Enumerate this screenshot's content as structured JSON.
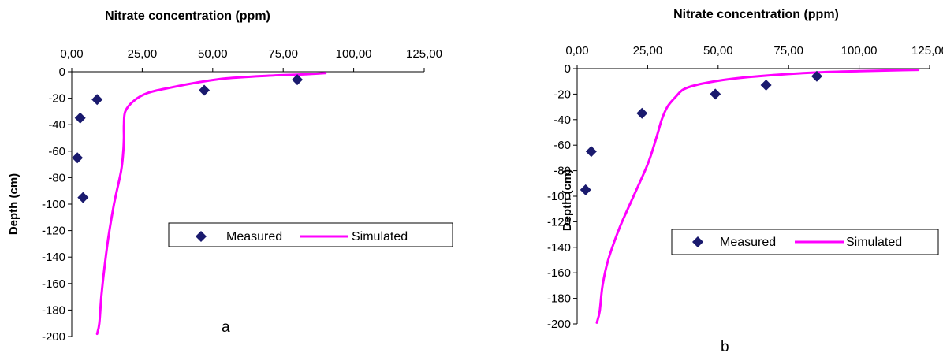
{
  "colors": {
    "measured": "#1a1a6e",
    "simulated": "#ff00ff"
  },
  "chart_data": [
    {
      "type": "scatter",
      "title": "Nitrate concentration (ppm)",
      "xlabel": "Nitrate concentration (ppm)",
      "ylabel": "Depth (cm)",
      "panel_label": "a",
      "xlim": [
        0,
        125
      ],
      "ylim": [
        -200,
        0
      ],
      "x_axis_position": "top",
      "x_ticks": [
        0,
        25,
        50,
        75,
        100,
        125
      ],
      "x_tick_labels": [
        "0,00",
        "25,00",
        "50,00",
        "75,00",
        "100,00",
        "125,00"
      ],
      "y_ticks": [
        0,
        -20,
        -40,
        -60,
        -80,
        -100,
        -120,
        -140,
        -160,
        -180,
        -200
      ],
      "y_tick_labels": [
        "0",
        "-20",
        "-40",
        "-60",
        "-80",
        "-100",
        "-120",
        "-140",
        "-160",
        "-180",
        "-200"
      ],
      "grid": false,
      "legend": {
        "position": "center-right",
        "entries": [
          "Measured",
          "Simulated"
        ]
      },
      "series": [
        {
          "name": "Measured",
          "kind": "scatter",
          "x": [
            80,
            47,
            9,
            3,
            2,
            4
          ],
          "y": [
            -6,
            -14,
            -21,
            -35,
            -65,
            -95
          ]
        },
        {
          "name": "Simulated",
          "kind": "line",
          "x": [
            90,
            82,
            70,
            55,
            45,
            35,
            27,
            22,
            19,
            18.5,
            18.5,
            18.3,
            17.5,
            15,
            13,
            11.5,
            10.5,
            9.8,
            9
          ],
          "y": [
            -1,
            -2,
            -3,
            -5,
            -8,
            -12,
            -16,
            -22,
            -30,
            -40,
            -50,
            -60,
            -75,
            -100,
            -125,
            -150,
            -170,
            -190,
            -198
          ]
        }
      ]
    },
    {
      "type": "scatter",
      "title": "Nitrate concentration (ppm)",
      "xlabel": "Nitrate concentration (ppm)",
      "ylabel": "Depth (cm)",
      "panel_label": "b",
      "xlim": [
        0,
        125
      ],
      "ylim": [
        -200,
        0
      ],
      "x_axis_position": "top",
      "x_ticks": [
        0,
        25,
        50,
        75,
        100,
        125
      ],
      "x_tick_labels": [
        "0,00",
        "25,00",
        "50,00",
        "75,00",
        "100,00",
        "125,00"
      ],
      "y_ticks": [
        0,
        -20,
        -40,
        -60,
        -80,
        -100,
        -120,
        -140,
        -160,
        -180,
        -200
      ],
      "y_tick_labels": [
        "0",
        "-20",
        "-40",
        "-60",
        "-80",
        "-100",
        "-120",
        "-140",
        "-160",
        "-180",
        "-200"
      ],
      "grid": false,
      "legend": {
        "position": "center-right",
        "entries": [
          "Measured",
          "Simulated"
        ]
      },
      "series": [
        {
          "name": "Measured",
          "kind": "scatter",
          "x": [
            85,
            67,
            49,
            23,
            5,
            3
          ],
          "y": [
            -6,
            -13,
            -20,
            -35,
            -65,
            -95
          ]
        },
        {
          "name": "Simulated",
          "kind": "line",
          "x": [
            121,
            100,
            85,
            70,
            55,
            44,
            38,
            35,
            32,
            30,
            28,
            25,
            20,
            15,
            11,
            9,
            8,
            7
          ],
          "y": [
            -1,
            -2,
            -3,
            -5,
            -8,
            -12,
            -16,
            -22,
            -30,
            -40,
            -55,
            -75,
            -100,
            -125,
            -150,
            -170,
            -190,
            -199
          ]
        }
      ]
    }
  ]
}
